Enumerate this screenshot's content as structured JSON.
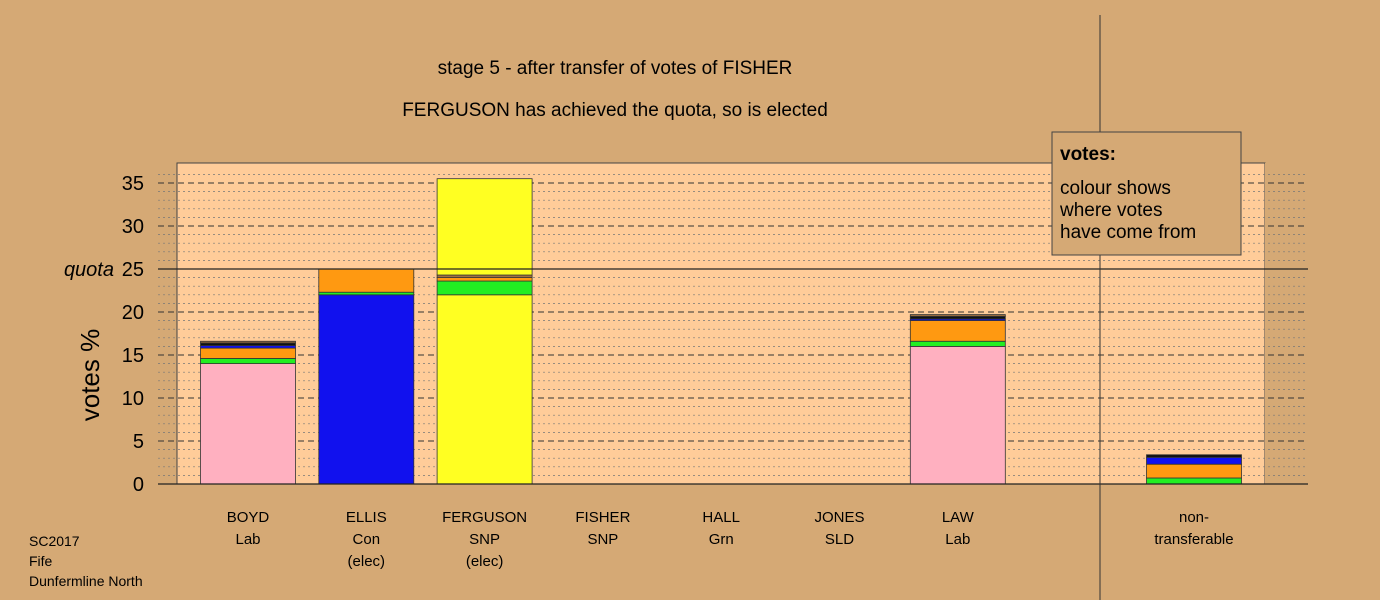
{
  "chart_data": {
    "type": "bar",
    "title": "stage 5 - after transfer of votes of FISHER",
    "subtitle": "FERGUSON has achieved the quota, so is elected",
    "ylabel": "votes %",
    "ylim": [
      0,
      37
    ],
    "yticks": [
      0,
      5,
      10,
      15,
      20,
      25,
      30,
      35
    ],
    "quota": 25,
    "quota_label": "quota",
    "grid": true,
    "legend": {
      "placement": "top-right",
      "title": "votes:",
      "lines": [
        "colour shows",
        "where votes",
        "have come from"
      ]
    },
    "categories": [
      {
        "name": "BOYD",
        "party": "Lab",
        "note": ""
      },
      {
        "name": "ELLIS",
        "party": "Con",
        "note": "(elec)"
      },
      {
        "name": "FERGUSON",
        "party": "SNP",
        "note": "(elec)"
      },
      {
        "name": "FISHER",
        "party": "SNP",
        "note": ""
      },
      {
        "name": "HALL",
        "party": "Grn",
        "note": ""
      },
      {
        "name": "JONES",
        "party": "SLD",
        "note": ""
      },
      {
        "name": "LAW",
        "party": "Lab",
        "note": ""
      }
    ],
    "nontransferable": {
      "label_lines": [
        "non-",
        "transferable"
      ],
      "segments": [
        {
          "color": "#22ee22",
          "value": 0.7
        },
        {
          "color": "#ff9911",
          "value": 1.6
        },
        {
          "color": "#1111ee",
          "value": 0.8
        },
        {
          "color": "#111111",
          "value": 0.3
        }
      ]
    },
    "series_colors": {
      "Lab": "#ffb0c0",
      "Con": "#1111ee",
      "SNP": "#ffff22",
      "Grn": "#22ee22",
      "SLD": "#ff9911",
      "other": "#111111",
      "line": "#a07040"
    },
    "bars": [
      [
        {
          "color": "#ffb0c0",
          "value": 14.0
        },
        {
          "color": "#22ee22",
          "value": 0.6
        },
        {
          "color": "#ff9911",
          "value": 1.2
        },
        {
          "color": "#1111ee",
          "value": 0.3
        },
        {
          "color": "#111111",
          "value": 0.3
        },
        {
          "color": "#a07040",
          "value": 0.2
        }
      ],
      [
        {
          "color": "#1111ee",
          "value": 22.0
        },
        {
          "color": "#22ee22",
          "value": 0.3
        },
        {
          "color": "#ff9911",
          "value": 2.7
        }
      ],
      [
        {
          "color": "#ffff22",
          "value": 22.0
        },
        {
          "color": "#22ee22",
          "value": 1.6
        },
        {
          "color": "#ff9911",
          "value": 0.4
        },
        {
          "color": "#a07040",
          "value": 0.3
        },
        {
          "color": "#ffff22",
          "value": 11.2
        }
      ],
      [],
      [],
      [],
      [
        {
          "color": "#ffb0c0",
          "value": 16.0
        },
        {
          "color": "#22ee22",
          "value": 0.6
        },
        {
          "color": "#ff9911",
          "value": 2.4
        },
        {
          "color": "#1111ee",
          "value": 0.2
        },
        {
          "color": "#111111",
          "value": 0.3
        },
        {
          "color": "#a07040",
          "value": 0.2
        }
      ]
    ]
  },
  "footer": {
    "lines": [
      "SC2017",
      "Fife",
      "Dunfermline North"
    ]
  }
}
